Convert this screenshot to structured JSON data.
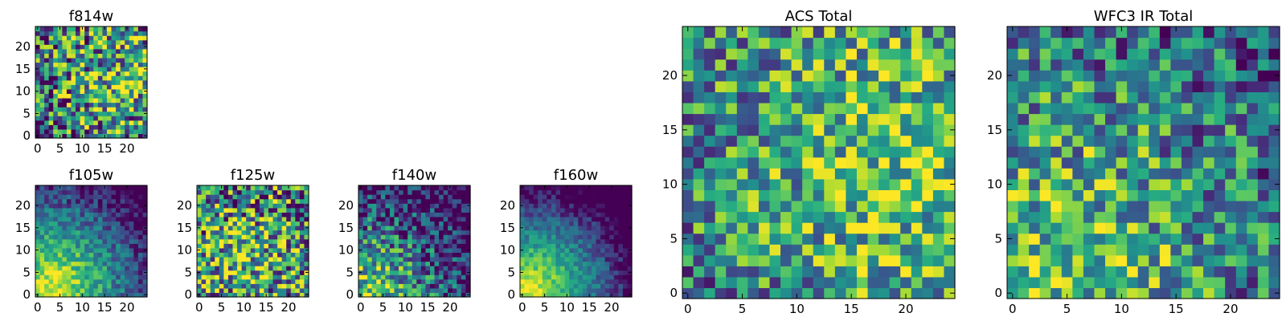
{
  "chart_data": [
    {
      "type": "heatmap",
      "title": "f814w",
      "grid": [
        25,
        25
      ],
      "colormap": "viridis",
      "seed": 11,
      "pattern": {
        "hx": 18,
        "hy": 12,
        "w": 0.45,
        "noise": 0.55,
        "base": 0.3
      },
      "xlim": [
        0,
        24
      ],
      "ylim": [
        0,
        24
      ],
      "xticks": [
        {
          "v": 0,
          "t": "0"
        },
        {
          "v": 5,
          "t": "5"
        },
        {
          "v": 10,
          "t": "10"
        },
        {
          "v": 15,
          "t": "15"
        },
        {
          "v": 20,
          "t": "20"
        }
      ],
      "yticks": [
        {
          "v": 0,
          "t": "0"
        },
        {
          "v": 5,
          "t": "5"
        },
        {
          "v": 10,
          "t": "10"
        },
        {
          "v": 15,
          "t": "15"
        },
        {
          "v": 20,
          "t": "20"
        }
      ]
    },
    {
      "type": "heatmap",
      "title": "f105w",
      "grid": [
        25,
        25
      ],
      "colormap": "viridis",
      "seed": 23,
      "pattern": {
        "hx": 3,
        "hy": 2,
        "w": 0.85,
        "noise": 0.2,
        "base": 0.15
      },
      "xlim": [
        0,
        24
      ],
      "ylim": [
        0,
        24
      ],
      "xticks": [
        {
          "v": 0,
          "t": "0"
        },
        {
          "v": 5,
          "t": "5"
        },
        {
          "v": 10,
          "t": "10"
        },
        {
          "v": 15,
          "t": "15"
        },
        {
          "v": 20,
          "t": "20"
        }
      ],
      "yticks": [
        {
          "v": 0,
          "t": "0"
        },
        {
          "v": 5,
          "t": "5"
        },
        {
          "v": 10,
          "t": "10"
        },
        {
          "v": 15,
          "t": "15"
        },
        {
          "v": 20,
          "t": "20"
        }
      ]
    },
    {
      "type": "heatmap",
      "title": "f125w",
      "grid": [
        25,
        25
      ],
      "colormap": "viridis",
      "seed": 37,
      "pattern": {
        "hx": 10,
        "hy": 8,
        "w": 0.4,
        "noise": 0.55,
        "base": 0.35
      },
      "xlim": [
        0,
        24
      ],
      "ylim": [
        0,
        24
      ],
      "xticks": [
        {
          "v": 0,
          "t": "0"
        },
        {
          "v": 5,
          "t": "5"
        },
        {
          "v": 10,
          "t": "10"
        },
        {
          "v": 15,
          "t": "15"
        },
        {
          "v": 20,
          "t": "20"
        }
      ],
      "yticks": [
        {
          "v": 0,
          "t": "0"
        },
        {
          "v": 5,
          "t": "5"
        },
        {
          "v": 10,
          "t": "10"
        },
        {
          "v": 15,
          "t": "15"
        },
        {
          "v": 20,
          "t": "20"
        }
      ]
    },
    {
      "type": "heatmap",
      "title": "f140w",
      "grid": [
        25,
        25
      ],
      "colormap": "viridis",
      "seed": 41,
      "pattern": {
        "hx": 2,
        "hy": 1,
        "w": 0.7,
        "noise": 0.4,
        "base": 0.1
      },
      "xlim": [
        0,
        24
      ],
      "ylim": [
        0,
        24
      ],
      "xticks": [
        {
          "v": 0,
          "t": "0"
        },
        {
          "v": 5,
          "t": "5"
        },
        {
          "v": 10,
          "t": "10"
        },
        {
          "v": 15,
          "t": "15"
        },
        {
          "v": 20,
          "t": "20"
        }
      ],
      "yticks": [
        {
          "v": 0,
          "t": "0"
        },
        {
          "v": 5,
          "t": "5"
        },
        {
          "v": 10,
          "t": "10"
        },
        {
          "v": 15,
          "t": "15"
        },
        {
          "v": 20,
          "t": "20"
        }
      ]
    },
    {
      "type": "heatmap",
      "title": "f160w",
      "grid": [
        25,
        25
      ],
      "colormap": "viridis",
      "seed": 53,
      "pattern": {
        "hx": 2,
        "hy": 1,
        "w": 0.95,
        "noise": 0.15,
        "base": 0.05
      },
      "xlim": [
        0,
        24
      ],
      "ylim": [
        0,
        24
      ],
      "xticks": [
        {
          "v": 0,
          "t": "0"
        },
        {
          "v": 5,
          "t": "5"
        },
        {
          "v": 10,
          "t": "10"
        },
        {
          "v": 15,
          "t": "15"
        },
        {
          "v": 20,
          "t": "20"
        }
      ],
      "yticks": [
        {
          "v": 0,
          "t": "0"
        },
        {
          "v": 5,
          "t": "5"
        },
        {
          "v": 10,
          "t": "10"
        },
        {
          "v": 15,
          "t": "15"
        },
        {
          "v": 20,
          "t": "20"
        }
      ]
    },
    {
      "type": "heatmap",
      "title": "ACS Total",
      "grid": [
        25,
        25
      ],
      "colormap": "viridis",
      "seed": 67,
      "pattern": {
        "hx": 20,
        "hy": 12,
        "w": 0.35,
        "noise": 0.4,
        "base": 0.45
      },
      "xlim": [
        0,
        24
      ],
      "ylim": [
        0,
        24
      ],
      "xticks": [
        {
          "v": 0,
          "t": "0"
        },
        {
          "v": 5,
          "t": "5"
        },
        {
          "v": 10,
          "t": "10"
        },
        {
          "v": 15,
          "t": "15"
        },
        {
          "v": 20,
          "t": "20"
        }
      ],
      "yticks": [
        {
          "v": 0,
          "t": "0"
        },
        {
          "v": 5,
          "t": "5"
        },
        {
          "v": 10,
          "t": "10"
        },
        {
          "v": 15,
          "t": "15"
        },
        {
          "v": 20,
          "t": "20"
        }
      ]
    },
    {
      "type": "heatmap",
      "title": "WFC3 IR Total",
      "grid": [
        25,
        25
      ],
      "colormap": "viridis",
      "seed": 79,
      "pattern": {
        "hx": 3,
        "hy": 2,
        "w": 0.4,
        "noise": 0.4,
        "base": 0.4
      },
      "xlim": [
        0,
        24
      ],
      "ylim": [
        0,
        24
      ],
      "xticks": [
        {
          "v": 0,
          "t": "0"
        },
        {
          "v": 5,
          "t": "5"
        },
        {
          "v": 10,
          "t": "10"
        },
        {
          "v": 15,
          "t": "15"
        },
        {
          "v": 20,
          "t": "20"
        }
      ],
      "yticks": [
        {
          "v": 0,
          "t": "0"
        },
        {
          "v": 5,
          "t": "5"
        },
        {
          "v": 10,
          "t": "10"
        },
        {
          "v": 15,
          "t": "15"
        },
        {
          "v": 20,
          "t": "20"
        }
      ]
    }
  ]
}
